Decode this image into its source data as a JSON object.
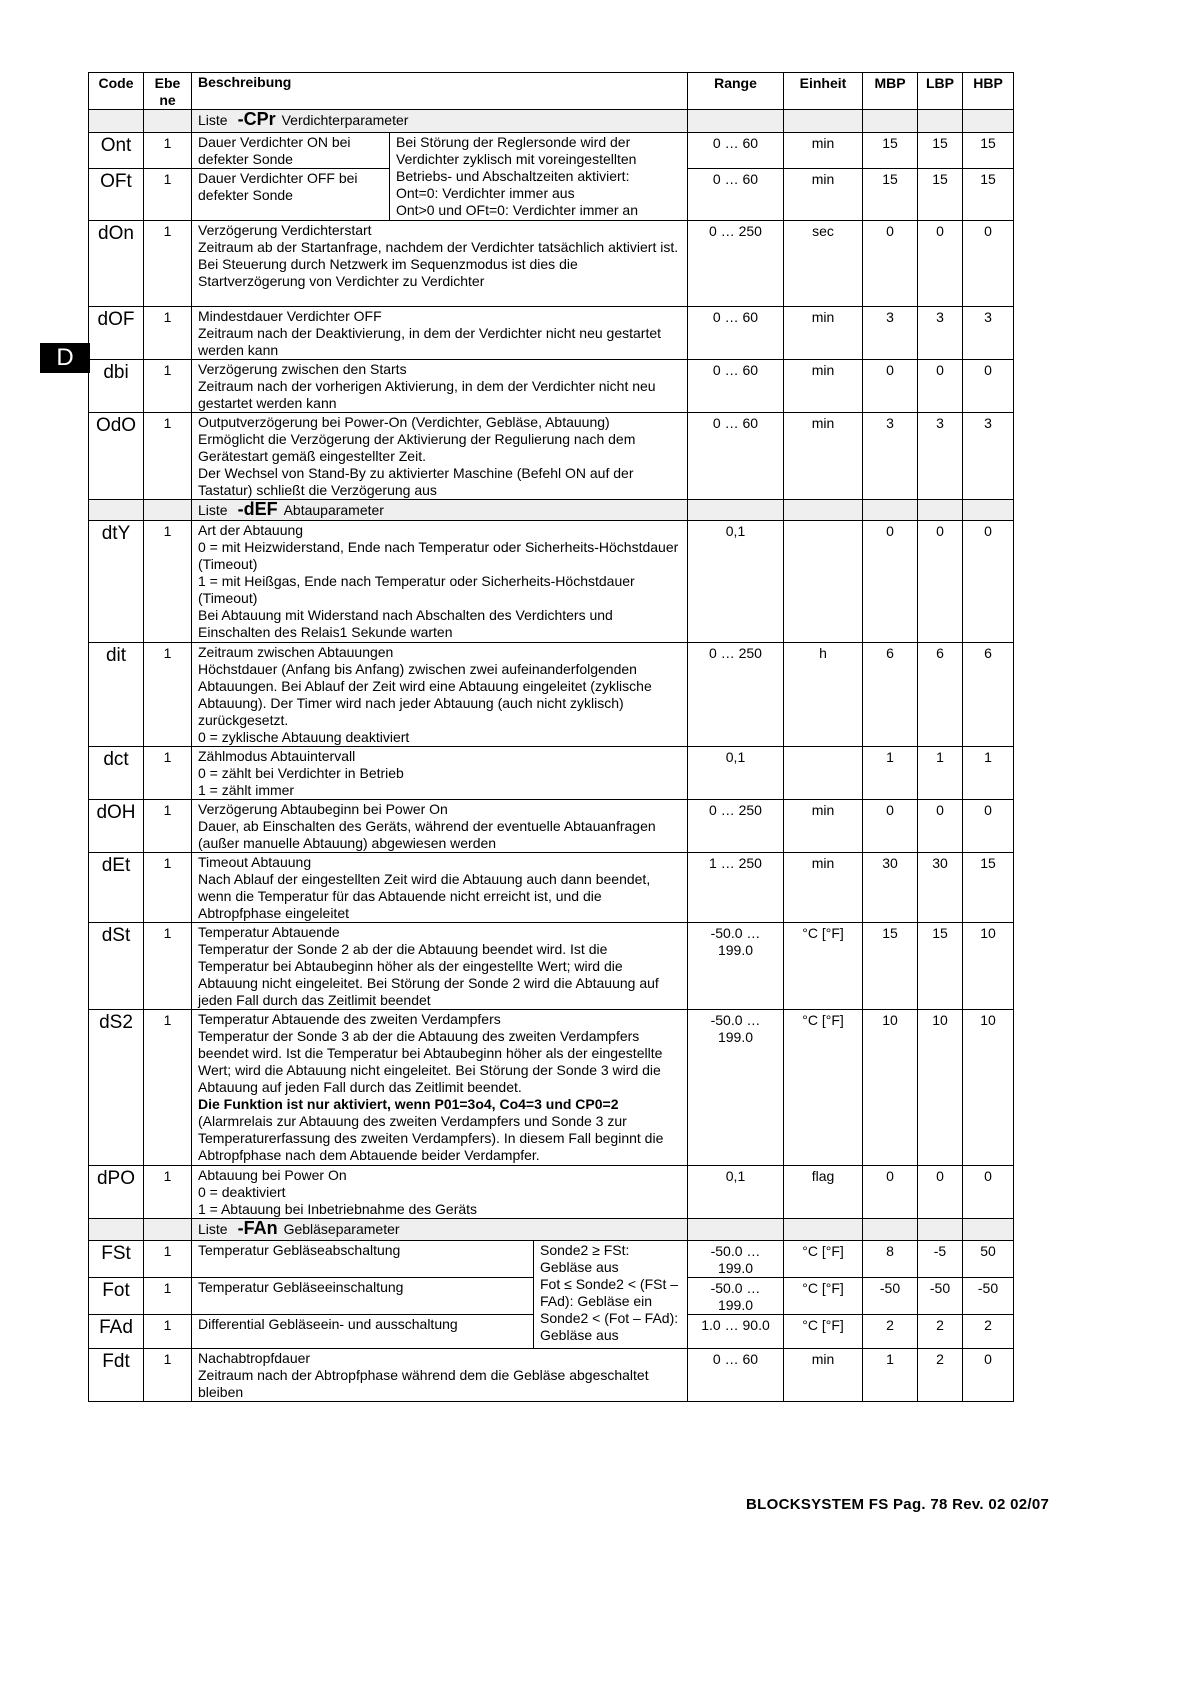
{
  "side_tab": "D",
  "header": {
    "code": "Code",
    "ebene": "Ebe\nne",
    "beschreibung": "Beschreibung",
    "range": "Range",
    "einheit": "Einheit",
    "mbp": "MBP",
    "lbp": "LBP",
    "hbp": "HBP"
  },
  "rows": [
    {
      "type": "section",
      "label": "Liste",
      "code": "-CPr",
      "name": "Verdichterparameter"
    },
    {
      "type": "param",
      "code": "Ont",
      "ebene": "1",
      "desc": "Dauer Verdichter ON bei\ndefekter Sonde",
      "note": "Bei Störung der Reglersonde wird der Verdichter zyklisch mit voreingestellten Betriebs- und Abschaltzeiten aktiviert:\nOnt=0: Verdichter immer aus\nOnt>0 und OFt=0: Verdichter immer an",
      "range": "0 … 60",
      "unit": "min",
      "mbp": "15",
      "lbp": "15",
      "hbp": "15"
    },
    {
      "type": "param",
      "code": "OFt",
      "ebene": "1",
      "desc": "Dauer Verdichter OFF bei\ndefekter Sonde",
      "range": "0 … 60",
      "unit": "min",
      "mbp": "15",
      "lbp": "15",
      "hbp": "15"
    },
    {
      "type": "param",
      "code": "dOn",
      "ebene": "1",
      "desc": "Verzögerung Verdichterstart\nZeitraum ab der Startanfrage, nachdem der Verdichter tatsächlich aktiviert ist.\nBei Steuerung durch Netzwerk im Sequenzmodus ist dies die Startverzögerung von Verdichter zu Verdichter",
      "range": "0 … 250",
      "unit": "sec",
      "mbp": "0",
      "lbp": "0",
      "hbp": "0"
    },
    {
      "type": "param",
      "code": "dOF",
      "ebene": "1",
      "desc": "Mindestdauer Verdichter OFF\nZeitraum nach der Deaktivierung, in dem der Verdichter nicht neu gestartet werden kann",
      "range": "0 … 60",
      "unit": "min",
      "mbp": "3",
      "lbp": "3",
      "hbp": "3"
    },
    {
      "type": "param",
      "code": "dbi",
      "ebene": "1",
      "desc": "Verzögerung zwischen den Starts\nZeitraum nach der vorherigen Aktivierung, in dem der Verdichter nicht neu gestartet werden kann",
      "range": "0 … 60",
      "unit": "min",
      "mbp": "0",
      "lbp": "0",
      "hbp": "0"
    },
    {
      "type": "param",
      "code": "OdO",
      "ebene": "1",
      "desc": "Outputverzögerung bei Power-On (Verdichter, Gebläse, Abtauung)\nErmöglicht die Verzögerung der Aktivierung der Regulierung nach dem Gerätestart gemäß eingestellter Zeit.\nDer Wechsel von Stand-By zu aktivierter Maschine (Befehl ON auf der Tastatur) schließt die Verzögerung aus",
      "range": "0 … 60",
      "unit": "min",
      "mbp": "3",
      "lbp": "3",
      "hbp": "3"
    },
    {
      "type": "section",
      "label": "Liste",
      "code": "-dEF",
      "name": "Abtauparameter"
    },
    {
      "type": "param",
      "code": "dtY",
      "ebene": "1",
      "desc": "Art der Abtauung\n0 = mit Heizwiderstand, Ende nach Temperatur oder Sicherheits-Höchstdauer (Timeout)\n1 = mit Heißgas, Ende nach Temperatur oder Sicherheits-Höchstdauer (Timeout)\nBei Abtauung mit Widerstand nach Abschalten des Verdichters und Einschalten des Relais1 Sekunde warten",
      "range": "0,1",
      "unit": "",
      "mbp": "0",
      "lbp": "0",
      "hbp": "0"
    },
    {
      "type": "param",
      "code": "dit",
      "ebene": "1",
      "desc": "Zeitraum zwischen Abtauungen\nHöchstdauer (Anfang bis Anfang) zwischen zwei aufeinanderfolgenden Abtauungen. Bei Ablauf der Zeit wird eine Abtauung eingeleitet (zyklische Abtauung). Der Timer wird nach jeder Abtauung (auch nicht zyklisch) zurückgesetzt.\n0 = zyklische Abtauung deaktiviert",
      "range": "0 … 250",
      "unit": "h",
      "mbp": "6",
      "lbp": "6",
      "hbp": "6"
    },
    {
      "type": "param",
      "code": "dct",
      "ebene": "1",
      "desc": "Zählmodus Abtauintervall\n0 = zählt bei Verdichter in Betrieb\n1 = zählt immer",
      "range": "0,1",
      "unit": "",
      "mbp": "1",
      "lbp": "1",
      "hbp": "1"
    },
    {
      "type": "param",
      "code": "dOH",
      "ebene": "1",
      "desc": "Verzögerung Abtaubeginn bei Power On\nDauer, ab Einschalten des Geräts, während der eventuelle Abtauanfragen (außer manuelle Abtauung) abgewiesen werden",
      "range": "0 … 250",
      "unit": "min",
      "mbp": "0",
      "lbp": "0",
      "hbp": "0"
    },
    {
      "type": "param",
      "code": "dEt",
      "ebene": "1",
      "desc": "Timeout Abtauung\nNach Ablauf der eingestellten Zeit wird die Abtauung auch dann beendet, wenn die Temperatur für das Abtauende nicht erreicht ist, und die Abtropfphase eingeleitet",
      "range": "1 … 250",
      "unit": "min",
      "mbp": "30",
      "lbp": "30",
      "hbp": "15"
    },
    {
      "type": "param",
      "code": "dSt",
      "ebene": "1",
      "desc": "Temperatur Abtauende\nTemperatur der Sonde 2 ab der die Abtauung beendet wird. Ist die Temperatur bei Abtaubeginn höher als der eingestellte Wert; wird die Abtauung nicht eingeleitet. Bei Störung der Sonde 2 wird die Abtauung auf jeden Fall durch das Zeitlimit beendet",
      "range": "-50.0 …\n199.0",
      "unit": "°C [°F]",
      "mbp": "15",
      "lbp": "15",
      "hbp": "10"
    },
    {
      "type": "param",
      "code": "dS2",
      "ebene": "1",
      "desc": "Temperatur Abtauende  des zweiten Verdampfers\nTemperatur der Sonde 3 ab der die Abtauung des zweiten Verdampfers beendet wird. Ist die Temperatur bei Abtaubeginn höher als der eingestellte Wert; wird die Abtauung nicht eingeleitet. Bei Störung der Sonde 3 wird die Abtauung auf jeden Fall durch das Zeitlimit beendet.\n",
      "desc_bold": "Die Funktion ist nur aktiviert, wenn P01=3o4, Co4=3 und CP0=2",
      "desc_after": "\n(Alarmrelais zur Abtauung des zweiten Verdampfers und Sonde 3 zur Temperaturerfassung des zweiten Verdampfers). In diesem Fall beginnt die Abtropfphase nach dem Abtauende beider Verdampfer.",
      "range": "-50.0 …\n199.0",
      "unit": "°C [°F]",
      "mbp": "10",
      "lbp": "10",
      "hbp": "10"
    },
    {
      "type": "param",
      "code": "dPO",
      "ebene": "1",
      "desc": "Abtauung bei Power On\n0 = deaktiviert\n1 = Abtauung bei Inbetriebnahme des Geräts",
      "range": "0,1",
      "unit": "flag",
      "mbp": "0",
      "lbp": "0",
      "hbp": "0"
    },
    {
      "type": "section",
      "label": "Liste",
      "code": "-FAn",
      "name": "Gebläseparameter"
    },
    {
      "type": "param",
      "code": "FSt",
      "ebene": "1",
      "desc": "Temperatur Gebläseabschaltung",
      "note": "Sonde2 ≥ FSt: Gebläse aus\nFot ≤ Sonde2 < (FSt – FAd): Gebläse ein\nSonde2 < (Fot – FAd): Gebläse aus",
      "range": "-50.0 …\n199.0",
      "unit": "°C [°F]",
      "mbp": "8",
      "lbp": "-5",
      "hbp": "50"
    },
    {
      "type": "param",
      "code": "Fot",
      "ebene": "1",
      "desc": "Temperatur Gebläseeinschaltung",
      "range": "-50.0 …\n199.0",
      "unit": "°C [°F]",
      "mbp": "-50",
      "lbp": "-50",
      "hbp": "-50"
    },
    {
      "type": "param",
      "code": "FAd",
      "ebene": "1",
      "desc": "Differential Gebläseein- und ausschaltung",
      "range": "1.0 …  90.0",
      "unit": "°C [°F]",
      "mbp": "2",
      "lbp": "2",
      "hbp": "2"
    },
    {
      "type": "param",
      "code": "Fdt",
      "ebene": "1",
      "desc": "Nachabtropfdauer\nZeitraum nach der Abtropfphase während dem die Gebläse abgeschaltet bleiben",
      "range": "0 … 60",
      "unit": "min",
      "mbp": "1",
      "lbp": "2",
      "hbp": "0"
    }
  ],
  "footer": "BLOCKSYSTEM  FS Pag. 78 Rev. 02 02/07"
}
